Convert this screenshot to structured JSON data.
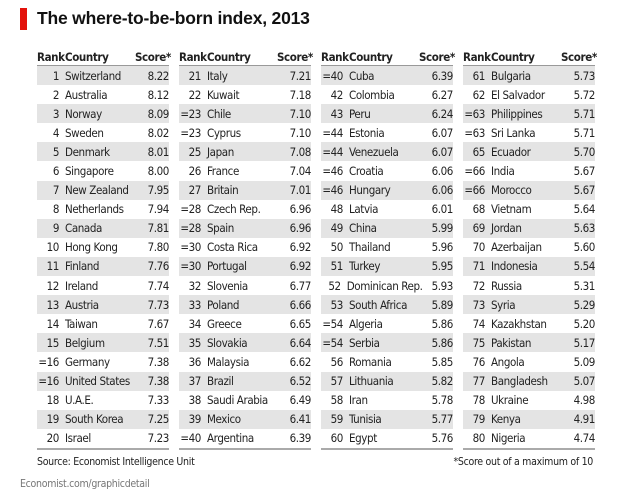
{
  "title": "The where-to-be-born index, 2013",
  "accent_color": "#e3120b",
  "source": "Source: Economist Intelligence Unit",
  "url": "Economist.com/graphicdetail",
  "footnote": "*Score out of a maximum of 10",
  "chart_data": {
    "type": "table",
    "title": "The where-to-be-born index, 2013",
    "headers": {
      "rank": "Rank",
      "country": "Country",
      "score": "Score*"
    },
    "columns": [
      [
        [
          "1",
          "Switzerland",
          "8.22"
        ],
        [
          "2",
          "Australia",
          "8.12"
        ],
        [
          "3",
          "Norway",
          "8.09"
        ],
        [
          "4",
          "Sweden",
          "8.02"
        ],
        [
          "5",
          "Denmark",
          "8.01"
        ],
        [
          "6",
          "Singapore",
          "8.00"
        ],
        [
          "7",
          "New Zealand",
          "7.95"
        ],
        [
          "8",
          "Netherlands",
          "7.94"
        ],
        [
          "9",
          "Canada",
          "7.81"
        ],
        [
          "10",
          "Hong Kong",
          "7.80"
        ],
        [
          "11",
          "Finland",
          "7.76"
        ],
        [
          "12",
          "Ireland",
          "7.74"
        ],
        [
          "13",
          "Austria",
          "7.73"
        ],
        [
          "14",
          "Taiwan",
          "7.67"
        ],
        [
          "15",
          "Belgium",
          "7.51"
        ],
        [
          "=16",
          "Germany",
          "7.38"
        ],
        [
          "=16",
          "United States",
          "7.38"
        ],
        [
          "18",
          "U.A.E.",
          "7.33"
        ],
        [
          "19",
          "South Korea",
          "7.25"
        ],
        [
          "20",
          "Israel",
          "7.23"
        ]
      ],
      [
        [
          "21",
          "Italy",
          "7.21"
        ],
        [
          "22",
          "Kuwait",
          "7.18"
        ],
        [
          "=23",
          "Chile",
          "7.10"
        ],
        [
          "=23",
          "Cyprus",
          "7.10"
        ],
        [
          "25",
          "Japan",
          "7.08"
        ],
        [
          "26",
          "France",
          "7.04"
        ],
        [
          "27",
          "Britain",
          "7.01"
        ],
        [
          "=28",
          "Czech Rep.",
          "6.96"
        ],
        [
          "=28",
          "Spain",
          "6.96"
        ],
        [
          "=30",
          "Costa Rica",
          "6.92"
        ],
        [
          "=30",
          "Portugal",
          "6.92"
        ],
        [
          "32",
          "Slovenia",
          "6.77"
        ],
        [
          "33",
          "Poland",
          "6.66"
        ],
        [
          "34",
          "Greece",
          "6.65"
        ],
        [
          "35",
          "Slovakia",
          "6.64"
        ],
        [
          "36",
          "Malaysia",
          "6.62"
        ],
        [
          "37",
          "Brazil",
          "6.52"
        ],
        [
          "38",
          "Saudi Arabia",
          "6.49"
        ],
        [
          "39",
          "Mexico",
          "6.41"
        ],
        [
          "=40",
          "Argentina",
          "6.39"
        ]
      ],
      [
        [
          "=40",
          "Cuba",
          "6.39"
        ],
        [
          "42",
          "Colombia",
          "6.27"
        ],
        [
          "43",
          "Peru",
          "6.24"
        ],
        [
          "=44",
          "Estonia",
          "6.07"
        ],
        [
          "=44",
          "Venezuela",
          "6.07"
        ],
        [
          "=46",
          "Croatia",
          "6.06"
        ],
        [
          "=46",
          "Hungary",
          "6.06"
        ],
        [
          "48",
          "Latvia",
          "6.01"
        ],
        [
          "49",
          "China",
          "5.99"
        ],
        [
          "50",
          "Thailand",
          "5.96"
        ],
        [
          "51",
          "Turkey",
          "5.95"
        ],
        [
          "52",
          "Dominican Rep.",
          "5.93"
        ],
        [
          "53",
          "South Africa",
          "5.89"
        ],
        [
          "=54",
          "Algeria",
          "5.86"
        ],
        [
          "=54",
          "Serbia",
          "5.86"
        ],
        [
          "56",
          "Romania",
          "5.85"
        ],
        [
          "57",
          "Lithuania",
          "5.82"
        ],
        [
          "58",
          "Iran",
          "5.78"
        ],
        [
          "59",
          "Tunisia",
          "5.77"
        ],
        [
          "60",
          "Egypt",
          "5.76"
        ]
      ],
      [
        [
          "61",
          "Bulgaria",
          "5.73"
        ],
        [
          "62",
          "El Salvador",
          "5.72"
        ],
        [
          "=63",
          "Philippines",
          "5.71"
        ],
        [
          "=63",
          "Sri Lanka",
          "5.71"
        ],
        [
          "65",
          "Ecuador",
          "5.70"
        ],
        [
          "=66",
          "India",
          "5.67"
        ],
        [
          "=66",
          "Morocco",
          "5.67"
        ],
        [
          "68",
          "Vietnam",
          "5.64"
        ],
        [
          "69",
          "Jordan",
          "5.63"
        ],
        [
          "70",
          "Azerbaijan",
          "5.60"
        ],
        [
          "71",
          "Indonesia",
          "5.54"
        ],
        [
          "72",
          "Russia",
          "5.31"
        ],
        [
          "73",
          "Syria",
          "5.29"
        ],
        [
          "74",
          "Kazakhstan",
          "5.20"
        ],
        [
          "75",
          "Pakistan",
          "5.17"
        ],
        [
          "76",
          "Angola",
          "5.09"
        ],
        [
          "77",
          "Bangladesh",
          "5.07"
        ],
        [
          "78",
          "Ukraine",
          "4.98"
        ],
        [
          "79",
          "Kenya",
          "4.91"
        ],
        [
          "80",
          "Nigeria",
          "4.74"
        ]
      ]
    ]
  }
}
